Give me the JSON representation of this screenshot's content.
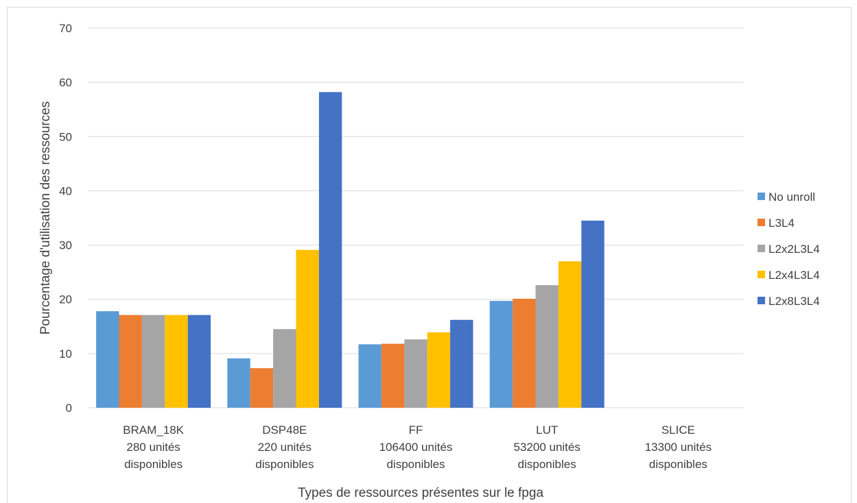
{
  "chart_data": {
    "type": "bar",
    "xlabel": "Types de ressources présentes sur le fpga",
    "ylabel": "Pourcentage d'utilisation des ressources",
    "ylim": [
      0,
      70
    ],
    "yticks": [
      0,
      10,
      20,
      30,
      40,
      50,
      60,
      70
    ],
    "grid": true,
    "legend_position": "right",
    "categories": [
      [
        "BRAM_18K",
        "280 unités",
        "disponibles"
      ],
      [
        "DSP48E",
        "220 unités",
        "disponibles"
      ],
      [
        "FF",
        "106400 unités",
        "disponibles"
      ],
      [
        "LUT",
        "53200 unités",
        "disponibles"
      ],
      [
        "SLICE",
        "13300 unités",
        "disponibles"
      ]
    ],
    "series": [
      {
        "name": "No unroll",
        "color": "#5B9BD5",
        "values": [
          17.8,
          9.1,
          11.7,
          19.7,
          0
        ]
      },
      {
        "name": "L3L4",
        "color": "#ED7D31",
        "values": [
          17.1,
          7.3,
          11.8,
          20.1,
          0
        ]
      },
      {
        "name": "L2x2L3L4",
        "color": "#A5A5A5",
        "values": [
          17.1,
          14.5,
          12.6,
          22.6,
          0
        ]
      },
      {
        "name": "L2x4L3L4",
        "color": "#FFC000",
        "values": [
          17.1,
          29.1,
          13.9,
          27.0,
          0
        ]
      },
      {
        "name": "L2x8L3L4",
        "color": "#4472C4",
        "values": [
          17.1,
          58.2,
          16.2,
          34.5,
          0
        ]
      }
    ]
  }
}
